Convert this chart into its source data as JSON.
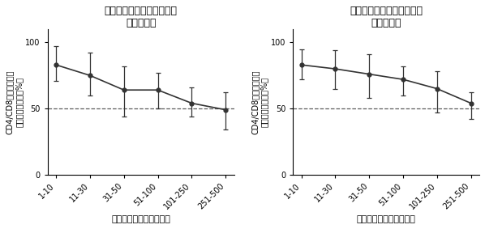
{
  "left_title_line1": "治療前の腫瘍生検サンプル",
  "left_title_line2": "（１１例）",
  "right_title_line1": "治療後の腫瘍生検サンプル",
  "right_title_line2": "（１０例）",
  "xlabel": "腫瘍検出クローンの順位",
  "ylabel_line1": "CD4/CD8と同定された",
  "ylabel_line2": "クローンの割合（%）",
  "categories": [
    "1-10",
    "11-30",
    "31-50",
    "51-100",
    "101-250",
    "251-500"
  ],
  "left_means": [
    83,
    75,
    64,
    64,
    54,
    49
  ],
  "left_errors_upper": [
    14,
    17,
    18,
    13,
    12,
    13
  ],
  "left_errors_lower": [
    12,
    15,
    20,
    14,
    10,
    15
  ],
  "right_means": [
    83,
    80,
    76,
    72,
    65,
    54
  ],
  "right_errors_upper": [
    12,
    14,
    15,
    10,
    13,
    8
  ],
  "right_errors_lower": [
    11,
    15,
    18,
    12,
    18,
    12
  ],
  "ylim": [
    0,
    110
  ],
  "yticks": [
    0,
    50,
    100
  ],
  "dashed_line_y": 50,
  "line_color": "#333333",
  "bg_color": "#ffffff",
  "title_fontsize": 9,
  "tick_fontsize": 7,
  "label_fontsize": 8
}
